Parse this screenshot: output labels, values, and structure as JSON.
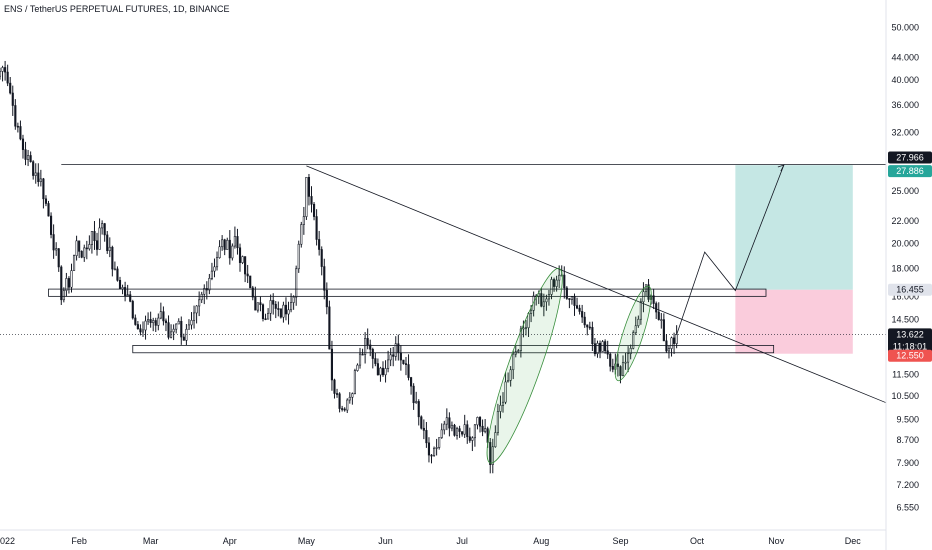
{
  "header": {
    "title": "ENS / TetherUS PERPETUAL FUTURES, 1D, BINANCE"
  },
  "colors": {
    "up": "#ffffff",
    "down": "#131722",
    "wick": "#131722",
    "target_zone": "#b2dfdb",
    "stop_zone": "#f8bbd0",
    "target_badge": "#26a69a",
    "stop_badge": "#ef5350",
    "price_badge": "#131722",
    "flag_badge": "#e0e3eb"
  },
  "chart_data": {
    "type": "candlestick",
    "title": "ENS / TetherUS PERPETUAL FUTURES, 1D, BINANCE",
    "xlabel": "",
    "ylabel": "",
    "y_scale": "log",
    "ylim": [
      6.0,
      52.0
    ],
    "xlim": [
      "2022-01-01",
      "2022-12-14"
    ],
    "y_ticks": [
      50.0,
      44.0,
      40.0,
      36.0,
      32.0,
      25.0,
      22.0,
      20.0,
      18.0,
      16.0,
      14.5,
      11.5,
      10.5,
      9.5,
      8.7,
      7.9,
      7.2,
      6.55
    ],
    "y_tick_labels": [
      "50.000",
      "44.000",
      "40.000",
      "36.000",
      "32.000",
      "25.000",
      "22.000",
      "20.000",
      "18.000",
      "16.000",
      "14.500",
      "11.500",
      "10.500",
      "9.500",
      "8.700",
      "7.900",
      "7.200",
      "6.550"
    ],
    "x_ticks": [
      {
        "date": "2022-01-01",
        "label": "022"
      },
      {
        "date": "2022-02-01",
        "label": "Feb"
      },
      {
        "date": "2022-03-01",
        "label": "Mar"
      },
      {
        "date": "2022-04-01",
        "label": "Apr"
      },
      {
        "date": "2022-05-01",
        "label": "May"
      },
      {
        "date": "2022-06-01",
        "label": "Jun"
      },
      {
        "date": "2022-07-01",
        "label": "Jul"
      },
      {
        "date": "2022-08-01",
        "label": "Aug"
      },
      {
        "date": "2022-09-01",
        "label": "Sep"
      },
      {
        "date": "2022-10-01",
        "label": "Oct"
      },
      {
        "date": "2022-11-01",
        "label": "Nov"
      },
      {
        "date": "2022-12-01",
        "label": "Dec"
      }
    ],
    "price_path": [
      [
        "2022-01-01",
        41.5
      ],
      [
        "2022-01-03",
        42.5
      ],
      [
        "2022-01-05",
        38.0
      ],
      [
        "2022-01-08",
        32.0
      ],
      [
        "2022-01-11",
        29.0
      ],
      [
        "2022-01-14",
        27.5
      ],
      [
        "2022-01-17",
        26.0
      ],
      [
        "2022-01-20",
        22.5
      ],
      [
        "2022-01-23",
        19.0
      ],
      [
        "2022-01-25",
        16.2
      ],
      [
        "2022-01-28",
        17.0
      ],
      [
        "2022-01-31",
        20.0
      ],
      [
        "2022-02-03",
        19.0
      ],
      [
        "2022-02-06",
        21.0
      ],
      [
        "2022-02-08",
        20.0
      ],
      [
        "2022-02-10",
        22.0
      ],
      [
        "2022-02-12",
        20.0
      ],
      [
        "2022-02-15",
        17.5
      ],
      [
        "2022-02-18",
        16.5
      ],
      [
        "2022-02-21",
        15.5
      ],
      [
        "2022-02-24",
        14.0
      ],
      [
        "2022-02-27",
        14.5
      ],
      [
        "2022-03-02",
        14.0
      ],
      [
        "2022-03-05",
        15.0
      ],
      [
        "2022-03-08",
        13.5
      ],
      [
        "2022-03-11",
        14.5
      ],
      [
        "2022-03-14",
        13.5
      ],
      [
        "2022-03-17",
        14.0
      ],
      [
        "2022-03-20",
        15.5
      ],
      [
        "2022-03-23",
        17.0
      ],
      [
        "2022-03-26",
        18.5
      ],
      [
        "2022-03-29",
        20.0
      ],
      [
        "2022-04-01",
        19.5
      ],
      [
        "2022-04-03",
        20.5
      ],
      [
        "2022-04-05",
        19.0
      ],
      [
        "2022-04-08",
        17.0
      ],
      [
        "2022-04-11",
        15.5
      ],
      [
        "2022-04-14",
        14.8
      ],
      [
        "2022-04-17",
        15.5
      ],
      [
        "2022-04-20",
        14.8
      ],
      [
        "2022-04-23",
        15.2
      ],
      [
        "2022-04-26",
        16.5
      ],
      [
        "2022-04-28",
        19.5
      ],
      [
        "2022-04-30",
        23.0
      ],
      [
        "2022-05-01",
        26.5
      ],
      [
        "2022-05-03",
        24.0
      ],
      [
        "2022-05-05",
        21.0
      ],
      [
        "2022-05-07",
        18.5
      ],
      [
        "2022-05-09",
        15.0
      ],
      [
        "2022-05-11",
        11.5
      ],
      [
        "2022-05-13",
        10.5
      ],
      [
        "2022-05-15",
        10.0
      ],
      [
        "2022-05-18",
        10.5
      ],
      [
        "2022-05-21",
        12.0
      ],
      [
        "2022-05-24",
        13.0
      ],
      [
        "2022-05-27",
        12.5
      ],
      [
        "2022-05-30",
        11.5
      ],
      [
        "2022-06-02",
        12.5
      ],
      [
        "2022-06-05",
        13.0
      ],
      [
        "2022-06-08",
        12.0
      ],
      [
        "2022-06-11",
        11.0
      ],
      [
        "2022-06-14",
        9.5
      ],
      [
        "2022-06-17",
        8.5
      ],
      [
        "2022-06-19",
        7.9
      ],
      [
        "2022-06-22",
        8.8
      ],
      [
        "2022-06-25",
        9.3
      ],
      [
        "2022-06-28",
        8.8
      ],
      [
        "2022-07-01",
        9.2
      ],
      [
        "2022-07-04",
        8.6
      ],
      [
        "2022-07-07",
        9.4
      ],
      [
        "2022-07-10",
        8.9
      ],
      [
        "2022-07-12",
        8.1
      ],
      [
        "2022-07-15",
        9.5
      ],
      [
        "2022-07-18",
        11.0
      ],
      [
        "2022-07-21",
        12.5
      ],
      [
        "2022-07-24",
        13.5
      ],
      [
        "2022-07-27",
        15.0
      ],
      [
        "2022-07-30",
        16.3
      ],
      [
        "2022-08-02",
        15.2
      ],
      [
        "2022-08-05",
        16.8
      ],
      [
        "2022-08-08",
        17.6
      ],
      [
        "2022-08-10",
        16.5
      ],
      [
        "2022-08-13",
        16.0
      ],
      [
        "2022-08-16",
        15.0
      ],
      [
        "2022-08-19",
        14.5
      ],
      [
        "2022-08-22",
        12.5
      ],
      [
        "2022-08-25",
        13.3
      ],
      [
        "2022-08-28",
        12.3
      ],
      [
        "2022-08-31",
        11.6
      ],
      [
        "2022-09-03",
        12.3
      ],
      [
        "2022-09-06",
        13.5
      ],
      [
        "2022-09-09",
        15.5
      ],
      [
        "2022-09-11",
        16.3
      ],
      [
        "2022-09-14",
        15.2
      ],
      [
        "2022-09-17",
        14.8
      ],
      [
        "2022-09-19",
        12.5
      ],
      [
        "2022-09-21",
        13.0
      ],
      [
        "2022-09-23",
        13.622
      ]
    ]
  },
  "annotations": {
    "current_price": "13.622",
    "countdown": "11:18:01",
    "target_price": "27.886",
    "resistance_price": "27.966",
    "entry_price": "16.455",
    "stop_price": "12.550"
  }
}
